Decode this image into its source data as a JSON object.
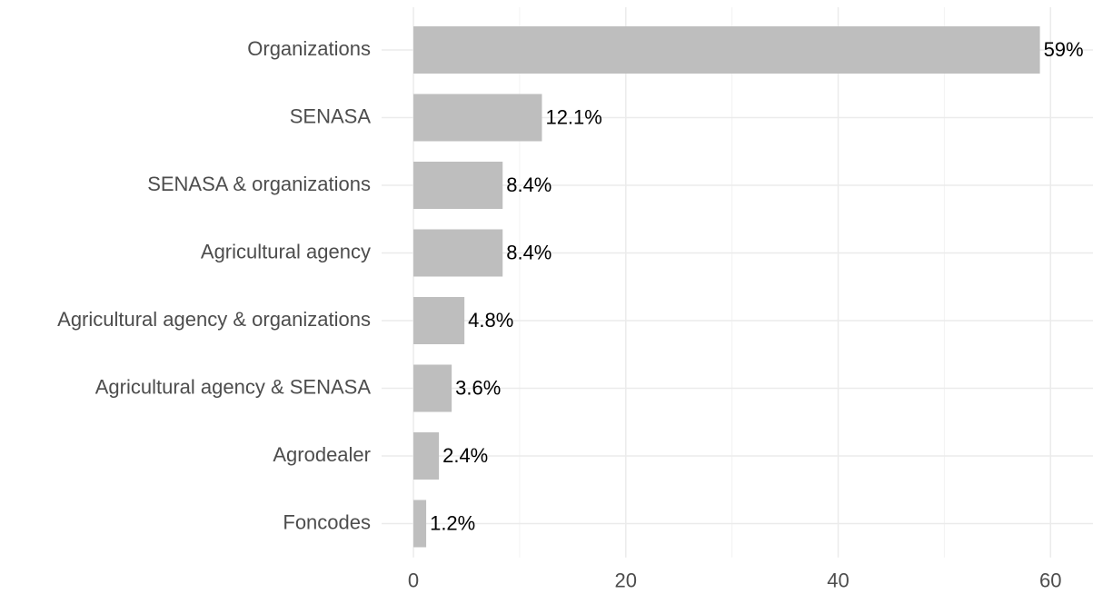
{
  "chart_data": {
    "type": "bar",
    "orientation": "horizontal",
    "categories": [
      "Organizations",
      "SENASA",
      "SENASA & organizations",
      "Agricultural agency",
      "Agricultural agency & organizations",
      "Agricultural agency & SENASA",
      "Agrodealer",
      "Foncodes"
    ],
    "values": [
      59,
      12.1,
      8.4,
      8.4,
      4.8,
      3.6,
      2.4,
      1.2
    ],
    "value_labels": [
      "59%",
      "12.1%",
      "8.4%",
      "8.4%",
      "4.8%",
      "3.6%",
      "2.4%",
      "1.2%"
    ],
    "color": "#bebebe",
    "xlim": [
      -3,
      64
    ],
    "xticks": [
      0,
      20,
      40,
      60
    ],
    "xminorticks": [
      10,
      30,
      50
    ],
    "grid": true
  }
}
